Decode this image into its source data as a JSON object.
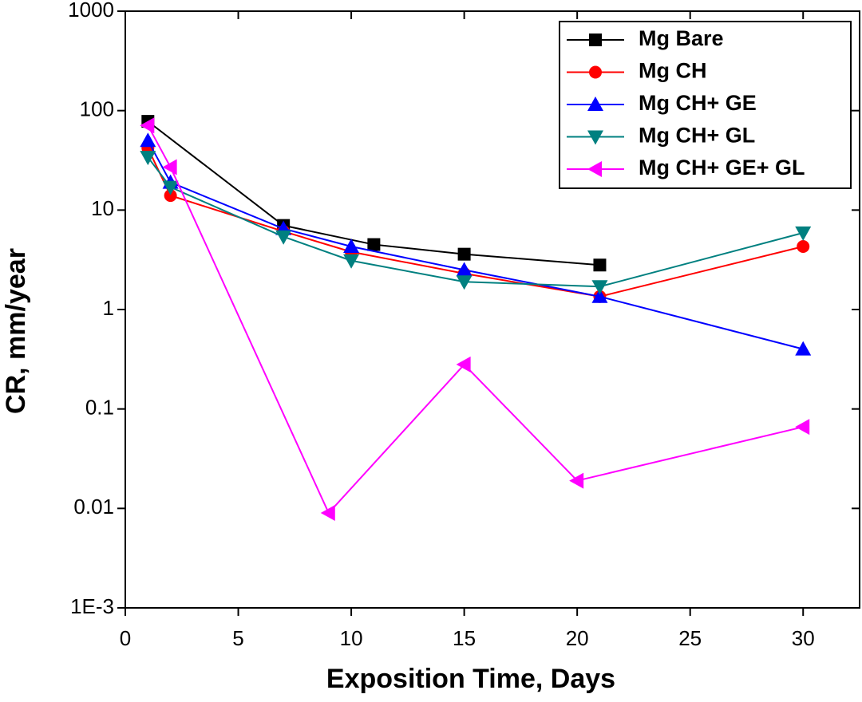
{
  "chart_data": {
    "type": "line",
    "xlabel": "Exposition Time, Days",
    "ylabel": "CR, mm/year",
    "xlim": [
      0,
      32.5
    ],
    "xticks": [
      0,
      5,
      10,
      15,
      20,
      25,
      30
    ],
    "ylim": [
      0.001,
      1000
    ],
    "yscale": "log",
    "yticks": [
      1000,
      100,
      10,
      1,
      0.1,
      0.01,
      {
        "value": 0.001,
        "label": "1E-3"
      }
    ],
    "legend": "upper right",
    "series": [
      {
        "name": "Mg Bare",
        "color": "#000000",
        "marker": "square",
        "x": [
          1,
          7,
          11,
          15,
          21
        ],
        "values": [
          78,
          7.0,
          4.5,
          3.6,
          2.8
        ]
      },
      {
        "name": "Mg CH",
        "color": "#ff0000",
        "marker": "circle",
        "x": [
          1,
          2,
          7,
          10,
          15,
          21,
          30
        ],
        "values": [
          42,
          14,
          6.1,
          3.8,
          2.3,
          1.35,
          4.3
        ]
      },
      {
        "name": "Mg CH+ GE",
        "color": "#0000ff",
        "marker": "triangle-up",
        "x": [
          1,
          2,
          7,
          10,
          15,
          21,
          30
        ],
        "values": [
          50,
          19,
          6.5,
          4.3,
          2.5,
          1.35,
          0.4
        ]
      },
      {
        "name": "Mg CH+ GL",
        "color": "#008080",
        "marker": "triangle-down",
        "x": [
          1,
          2,
          7,
          10,
          15,
          21,
          30
        ],
        "values": [
          34,
          17,
          5.4,
          3.1,
          1.9,
          1.7,
          5.9
        ]
      },
      {
        "name": "Mg CH+ GE+ GL",
        "color": "#ff00ff",
        "marker": "triangle-left",
        "x": [
          1,
          2,
          9,
          15,
          20,
          30
        ],
        "values": [
          71,
          27,
          0.009,
          0.28,
          0.019,
          0.066
        ]
      }
    ]
  }
}
